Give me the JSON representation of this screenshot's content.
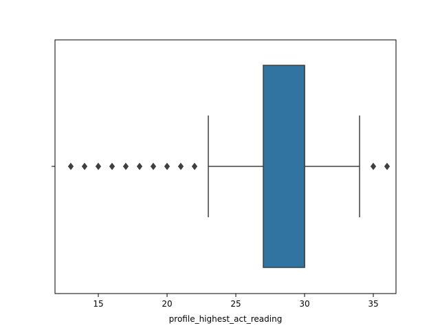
{
  "chart_data": {
    "type": "box",
    "orientation": "horizontal",
    "xlabel": "profile_highest_act_reading",
    "ylabel": "",
    "xlim": [
      11.85,
      36.65
    ],
    "x_ticks": [
      15,
      20,
      25,
      30,
      35
    ],
    "x_tick_labels": [
      "15",
      "20",
      "25",
      "30",
      "35"
    ],
    "box": {
      "whisker_low": 23,
      "q1": 27,
      "median": 30,
      "q3": 30,
      "whisker_high": 34,
      "outliers": [
        13,
        14,
        15,
        16,
        17,
        18,
        19,
        20,
        21,
        22,
        35,
        36
      ]
    },
    "box_color": "#3274a1",
    "line_color": "#3f3f3f",
    "grid": false
  }
}
